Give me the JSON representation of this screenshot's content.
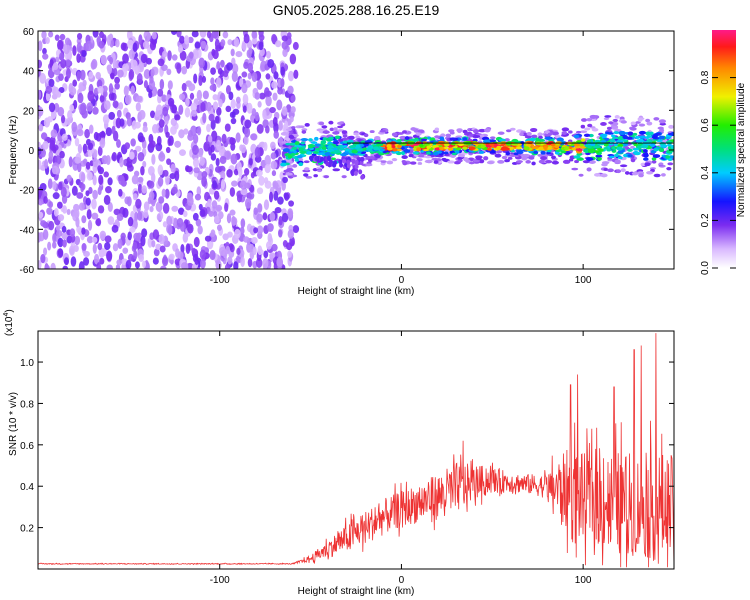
{
  "chart_data": [
    {
      "type": "heatmap",
      "title": "GN05.2025.288.16.25.E19",
      "xlabel": "Height of straight line (km)",
      "ylabel": "Frequency (Hz)",
      "xlim": [
        -200,
        150
      ],
      "ylim": [
        -60,
        60
      ],
      "xticks": [
        -100,
        0,
        100
      ],
      "yticks": [
        -60,
        -40,
        -20,
        0,
        20,
        40,
        60
      ],
      "colorbar": {
        "label": "Normalized spectral amplitude",
        "range": [
          0,
          1
        ],
        "ticks": [
          "0.0",
          "0.2",
          "0.4",
          "0.6",
          "0.8"
        ],
        "colormap": "rainbow-white-to-purple-blue-green-yellow-red-magenta"
      },
      "regions": [
        {
          "name": "broadband noise",
          "x_range": [
            -200,
            -58
          ],
          "freq_range": [
            -60,
            60
          ],
          "amplitude": 0.1
        },
        {
          "name": "signal band",
          "x_range": [
            -65,
            150
          ],
          "center_freq_hz": 2,
          "half_width_hz": 4,
          "peak_amplitude": 1.0
        }
      ]
    },
    {
      "type": "line",
      "xlabel": "Height of straight line (km)",
      "ylabel": "SNR (10 * v/v)",
      "yscale_label": "(x10",
      "yscale_exp": "4",
      "xlim": [
        -200,
        150
      ],
      "ylim": [
        0,
        11500
      ],
      "xticks": [
        -100,
        0,
        100
      ],
      "yticks": [
        {
          "value": 2000,
          "label": "0.2"
        },
        {
          "value": 4000,
          "label": "0.4"
        },
        {
          "value": 6000,
          "label": "0.6"
        },
        {
          "value": 8000,
          "label": "0.8"
        },
        {
          "value": 10000,
          "label": "1.0"
        }
      ],
      "series": [
        {
          "name": "SNR",
          "color": "#ee3333",
          "trend_x": [
            -200,
            -60,
            -50,
            -40,
            -30,
            -20,
            -10,
            0,
            10,
            20,
            30,
            40,
            50,
            60,
            70,
            80,
            90,
            95,
            100,
            110,
            120,
            130,
            140,
            150
          ],
          "trend_y": [
            250,
            250,
            500,
            1000,
            1500,
            2000,
            2500,
            2900,
            3200,
            3500,
            3900,
            4200,
            4300,
            4200,
            4100,
            4000,
            3800,
            3600,
            3500,
            3300,
            3200,
            3100,
            3000,
            2900
          ],
          "noise_fraction": [
            0.08,
            0.08,
            0.35,
            0.45,
            0.45,
            0.4,
            0.35,
            0.3,
            0.3,
            0.32,
            0.32,
            0.2,
            0.15,
            0.12,
            0.12,
            0.15,
            0.5,
            0.7,
            0.6,
            0.7,
            0.8,
            0.8,
            0.9,
            0.9
          ],
          "spikes": [
            {
              "x": 34,
              "y": 6200
            },
            {
              "x": 93,
              "y": 8900
            },
            {
              "x": 97,
              "y": 9400
            },
            {
              "x": 117,
              "y": 8800
            },
            {
              "x": 128,
              "y": 10600
            },
            {
              "x": 132,
              "y": 10800
            },
            {
              "x": 140,
              "y": 11400
            }
          ]
        }
      ]
    }
  ]
}
